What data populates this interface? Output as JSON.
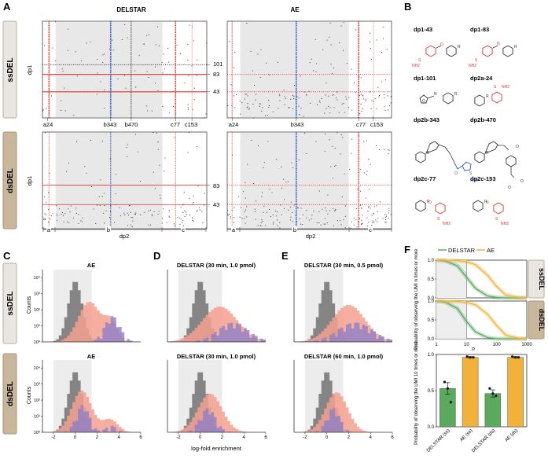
{
  "panel_letters": {
    "a": "A",
    "b": "B",
    "c": "C",
    "d": "D",
    "e": "E",
    "f": "F"
  },
  "colors": {
    "red": "#e0342c",
    "blue": "#2f55c8",
    "grey_bg": "#e8e8e8",
    "tan": "#c9b79c",
    "label_box": "#e9e6e1",
    "delstar": "#5aaa5e",
    "ae": "#f2b23a",
    "hist_grey": "#7f7f7f",
    "hist_salmon": "#f4a090",
    "hist_purple": "#8f80c8",
    "struct_red": "#e0342c",
    "struct_blue": "#2f55c8"
  },
  "row_labels": {
    "ssdel": "ssDEL",
    "dsdel": "dsDEL"
  },
  "panel_a": {
    "col_titles": [
      "DELSTAR",
      "AE"
    ],
    "y_axis": "dp1",
    "x_axis": "dp2",
    "top_ticks_left": [
      "a24",
      "b343",
      "b470",
      "c77",
      "c153"
    ],
    "top_ticks_right": [
      "a24",
      "b343",
      "c77",
      "c153"
    ],
    "ss_right_labels": [
      "101",
      "83",
      "43"
    ],
    "ds_right_labels": [
      "83",
      "43"
    ],
    "segments": [
      "a",
      "b",
      "c"
    ]
  },
  "panel_b": {
    "labels": [
      "dp1-43",
      "dp1-83",
      "dp1-101",
      "dp2a-24",
      "dp2b-343",
      "dp2b-470",
      "dp2c-77",
      "dp2c-153"
    ],
    "nh2": "NH2",
    "s": "S",
    "o": "O",
    "n": "N",
    "r": "R"
  },
  "panel_c": {
    "titles": [
      "AE",
      "AE"
    ]
  },
  "panel_d": {
    "titles": [
      "DELSTAR (30 min, 1.0 pmol)",
      "DELSTAR (30 min, 1.0 pmol)"
    ]
  },
  "panel_e": {
    "titles": [
      "DELSTAR (30 min, 0.5 pmol)",
      "DELSTAR (60 min, 1.0 pmol)"
    ]
  },
  "hist_axis": {
    "y_label": "Counts",
    "y_ticks": [
      "10⁴",
      "10³",
      "10²",
      "10¹",
      "10⁰"
    ],
    "x_ticks": [
      "-2",
      "0",
      "2",
      "4",
      "6"
    ],
    "x_label": "log-fold enrichment"
  },
  "panel_f": {
    "legend": [
      "DELSTAR",
      "AE"
    ],
    "top_y_label": "Probability of observing the UMI n times or more",
    "top_y_ticks": [
      "1.0",
      "0.5",
      "0.0"
    ],
    "top_x_ticks": [
      "1",
      "10",
      "100",
      "1000"
    ],
    "top_x_label": "n",
    "bar_y_label": "Probability of observing the UMI 10 times or more",
    "bar_y_ticks": [
      "1.0",
      "0.5",
      "0.0"
    ],
    "bar_x_labels": [
      "DELSTAR (ss)",
      "AE (ss)",
      "DELSTAR (ds)",
      "AE (ds)"
    ]
  },
  "chart_data": [
    {
      "type": "bar",
      "title": "",
      "categories": [
        "DELSTAR (ss)",
        "AE (ss)",
        "DELSTAR (ds)",
        "AE (ds)"
      ],
      "values": [
        0.53,
        0.96,
        0.46,
        0.96
      ],
      "errors": [
        0.08,
        0.01,
        0.05,
        0.01
      ],
      "points": [
        [
          0.62,
          0.53,
          0.34
        ],
        [
          0.97,
          0.96,
          0.96
        ],
        [
          0.53,
          0.46,
          0.43
        ],
        [
          0.97,
          0.96,
          0.96
        ]
      ],
      "ylabel": "Probability of observing the UMI 10 times or more",
      "ylim": [
        0,
        1.0
      ],
      "colors": [
        "#5aaa5e",
        "#f2b23a",
        "#5aaa5e",
        "#f2b23a"
      ]
    },
    {
      "type": "line",
      "title": "ssDEL",
      "x": [
        1,
        2,
        5,
        10,
        20,
        50,
        100,
        200,
        500,
        1000
      ],
      "series": [
        {
          "name": "DELSTAR",
          "values": [
            1.0,
            0.98,
            0.85,
            0.55,
            0.25,
            0.05,
            0.01,
            0.0,
            0.0,
            0.0
          ]
        },
        {
          "name": "AE",
          "values": [
            1.0,
            1.0,
            0.99,
            0.96,
            0.88,
            0.6,
            0.3,
            0.08,
            0.01,
            0.0
          ]
        }
      ],
      "xlabel": "n",
      "ylabel": "Probability of observing the UMI n times or more",
      "ylim": [
        0,
        1.0
      ]
    },
    {
      "type": "line",
      "title": "dsDEL",
      "x": [
        1,
        2,
        5,
        10,
        20,
        50,
        100,
        200,
        500,
        1000
      ],
      "series": [
        {
          "name": "DELSTAR",
          "values": [
            1.0,
            0.97,
            0.8,
            0.46,
            0.18,
            0.03,
            0.0,
            0.0,
            0.0,
            0.0
          ]
        },
        {
          "name": "AE",
          "values": [
            1.0,
            1.0,
            0.99,
            0.96,
            0.9,
            0.65,
            0.35,
            0.1,
            0.01,
            0.0
          ]
        }
      ],
      "xlabel": "n",
      "ylabel": "Probability of observing the UMI n times or more",
      "ylim": [
        0,
        1.0
      ]
    }
  ]
}
